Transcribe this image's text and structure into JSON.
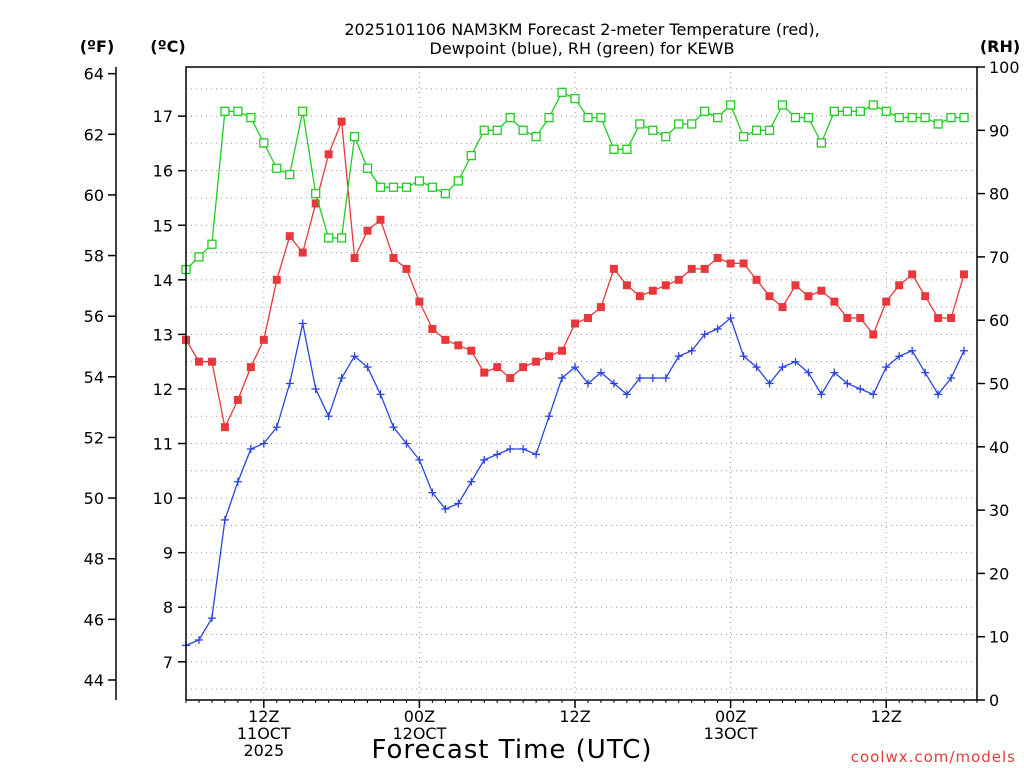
{
  "chart_data": {
    "type": "line",
    "title_line1": "2025101106 NAM3KM Forecast 2-meter Temperature (red),",
    "title_line2": "Dewpoint (blue), RH (green) for KEWB",
    "xlabel": "Forecast Time (UTC)",
    "credit": "coolwx.com/models",
    "left_outer_unit": "(ºF)",
    "left_inner_unit": "(ºC)",
    "right_unit": "(RH)",
    "x_hours_range": [
      0,
      61
    ],
    "x_ticks": [
      {
        "hour": 6,
        "lines": [
          "12Z",
          "11OCT",
          "2025"
        ]
      },
      {
        "hour": 18,
        "lines": [
          "00Z",
          "12OCT"
        ]
      },
      {
        "hour": 30,
        "lines": [
          "12Z"
        ]
      },
      {
        "hour": 42,
        "lines": [
          "00Z",
          "13OCT"
        ]
      },
      {
        "hour": 54,
        "lines": [
          "12Z"
        ]
      }
    ],
    "celsius_range": [
      6.3,
      17.9
    ],
    "celsius_ticks": [
      7,
      8,
      9,
      10,
      11,
      12,
      13,
      14,
      15,
      16,
      17
    ],
    "fahrenheit_ticks": [
      44,
      46,
      48,
      50,
      52,
      54,
      56,
      58,
      60,
      62,
      64
    ],
    "rh_range": [
      0,
      100
    ],
    "rh_ticks": [
      0,
      10,
      20,
      30,
      40,
      50,
      60,
      70,
      80,
      90,
      100
    ],
    "grid": true,
    "series": [
      {
        "name": "Temperature",
        "axis": "celsius",
        "color": "#e8383c",
        "marker": "filled-square",
        "values": [
          12.9,
          12.5,
          12.5,
          11.3,
          11.8,
          12.4,
          12.9,
          14.0,
          14.8,
          14.5,
          15.4,
          16.3,
          16.9,
          14.4,
          14.9,
          15.1,
          14.4,
          14.2,
          13.6,
          13.1,
          12.9,
          12.8,
          12.7,
          12.3,
          12.4,
          12.2,
          12.4,
          12.5,
          12.6,
          12.7,
          13.2,
          13.3,
          13.5,
          14.2,
          13.9,
          13.7,
          13.8,
          13.9,
          14.0,
          14.2,
          14.2,
          14.4,
          14.3,
          14.3,
          14.0,
          13.7,
          13.5,
          13.9,
          13.7,
          13.8,
          13.6,
          13.3,
          13.3,
          13.0,
          13.6,
          13.9,
          14.1,
          13.7,
          13.3,
          13.3,
          14.1
        ]
      },
      {
        "name": "Dewpoint",
        "axis": "celsius",
        "color": "#2b44e0",
        "marker": "plus",
        "values": [
          7.3,
          7.4,
          7.8,
          9.6,
          10.3,
          10.9,
          11.0,
          11.3,
          12.1,
          13.2,
          12.0,
          11.5,
          12.2,
          12.6,
          12.4,
          11.9,
          11.3,
          11.0,
          10.7,
          10.1,
          9.8,
          9.9,
          10.3,
          10.7,
          10.8,
          10.9,
          10.9,
          10.8,
          11.5,
          12.2,
          12.4,
          12.1,
          12.3,
          12.1,
          11.9,
          12.2,
          12.2,
          12.2,
          12.6,
          12.7,
          13.0,
          13.1,
          13.3,
          12.6,
          12.4,
          12.1,
          12.4,
          12.5,
          12.3,
          11.9,
          12.3,
          12.1,
          12.0,
          11.9,
          12.4,
          12.6,
          12.7,
          12.3,
          11.9,
          12.2,
          12.7
        ]
      },
      {
        "name": "RH",
        "axis": "rh",
        "color": "#22cc22",
        "marker": "open-square",
        "values": [
          68,
          70,
          72,
          93,
          93,
          92,
          88,
          84,
          83,
          93,
          80,
          73,
          73,
          89,
          84,
          81,
          81,
          81,
          82,
          81,
          80,
          82,
          86,
          90,
          90,
          92,
          90,
          89,
          92,
          96,
          95,
          92,
          92,
          87,
          87,
          91,
          90,
          89,
          91,
          91,
          93,
          92,
          94,
          89,
          90,
          90,
          94,
          92,
          92,
          88,
          93,
          93,
          93,
          94,
          93,
          92,
          92,
          92,
          91,
          92,
          92
        ]
      }
    ]
  }
}
